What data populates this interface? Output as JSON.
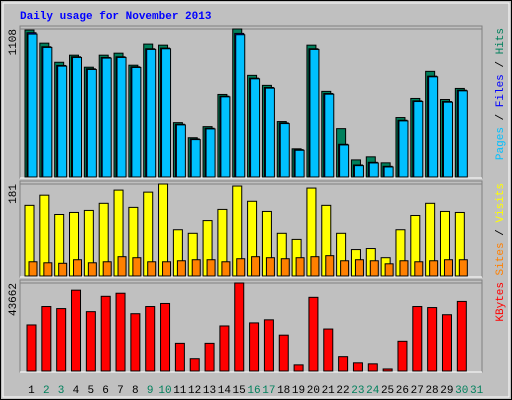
{
  "chart_data": [
    {
      "type": "bar",
      "title": "Daily usage for November 2013",
      "categories": [
        "1",
        "2",
        "3",
        "4",
        "5",
        "6",
        "7",
        "8",
        "9",
        "10",
        "11",
        "12",
        "13",
        "14",
        "15",
        "16",
        "17",
        "18",
        "19",
        "20",
        "21",
        "22",
        "23",
        "24",
        "25",
        "26",
        "27",
        "28",
        "29",
        "30",
        "31"
      ],
      "category_label_colors": [
        "#000000",
        "#00805c",
        "#00805c",
        "#000000",
        "#000000",
        "#000000",
        "#000000",
        "#000000",
        "#00805c",
        "#00805c",
        "#000000",
        "#000000",
        "#000000",
        "#000000",
        "#000000",
        "#00805c",
        "#00805c",
        "#000000",
        "#000000",
        "#000000",
        "#000000",
        "#000000",
        "#00805c",
        "#00805c",
        "#000000",
        "#000000",
        "#000000",
        "#000000",
        "#000000",
        "#00805c",
        "#00805c"
      ],
      "legend_separator": " / ",
      "series": [
        {
          "name": "Hits",
          "color": "#00805c",
          "values": [
            1100,
            1002,
            859,
            912,
            822,
            912,
            927,
            837,
            995,
            987,
            407,
            294,
            377,
            618,
            1108,
            761,
            686,
            415,
            211,
            987,
            641,
            362,
            128,
            151,
            106,
            445,
            588,
            791,
            580,
            663,
            null
          ]
        },
        {
          "name": "Files",
          "color": "#0000ff",
          "values": [
            1080,
            975,
            835,
            900,
            810,
            895,
            900,
            825,
            960,
            965,
            395,
            285,
            365,
            605,
            1075,
            740,
            670,
            405,
            205,
            960,
            625,
            245,
            90,
            110,
            80,
            425,
            570,
            755,
            565,
            650,
            null
          ]
        },
        {
          "name": "Pages",
          "color": "#00c0ff",
          "values": [
            1070,
            970,
            830,
            895,
            805,
            890,
            895,
            820,
            955,
            960,
            390,
            280,
            360,
            600,
            1065,
            735,
            665,
            400,
            200,
            955,
            620,
            240,
            85,
            105,
            75,
            420,
            565,
            750,
            560,
            645,
            null
          ]
        }
      ],
      "ylim": [
        0,
        1108
      ],
      "yticks": [
        1108
      ]
    },
    {
      "type": "bar",
      "legend_separator": " / ",
      "series": [
        {
          "name": "Visits",
          "color": "#ffff00",
          "values": [
            139,
            159,
            121,
            125,
            129,
            143,
            169,
            135,
            165,
            181,
            91,
            84,
            109,
            131,
            177,
            147,
            127,
            84,
            72,
            173,
            139,
            84,
            52,
            54,
            36,
            91,
            119,
            143,
            127,
            125,
            null
          ]
        },
        {
          "name": "Sites",
          "color": "#ff8000",
          "values": [
            28,
            26,
            25,
            32,
            26,
            28,
            38,
            36,
            28,
            28,
            30,
            32,
            32,
            28,
            34,
            38,
            36,
            34,
            36,
            38,
            40,
            30,
            32,
            30,
            24,
            30,
            28,
            30,
            32,
            32,
            null
          ]
        }
      ],
      "ylim": [
        0,
        181
      ],
      "yticks": [
        181
      ]
    },
    {
      "type": "bar",
      "series": [
        {
          "name": "KBytes",
          "color": "#ff0000",
          "values": [
            22846,
            31985,
            30970,
            40108,
            29447,
            37062,
            38585,
            28431,
            31985,
            33508,
            13708,
            6092,
            13708,
            22339,
            43662,
            23862,
            25385,
            17769,
            3046,
            36554,
            20816,
            7108,
            4062,
            3554,
            1015,
            14723,
            31985,
            31477,
            27923,
            34523,
            null
          ]
        }
      ],
      "ylim": [
        0,
        43662
      ],
      "yticks": [
        43662
      ]
    }
  ]
}
